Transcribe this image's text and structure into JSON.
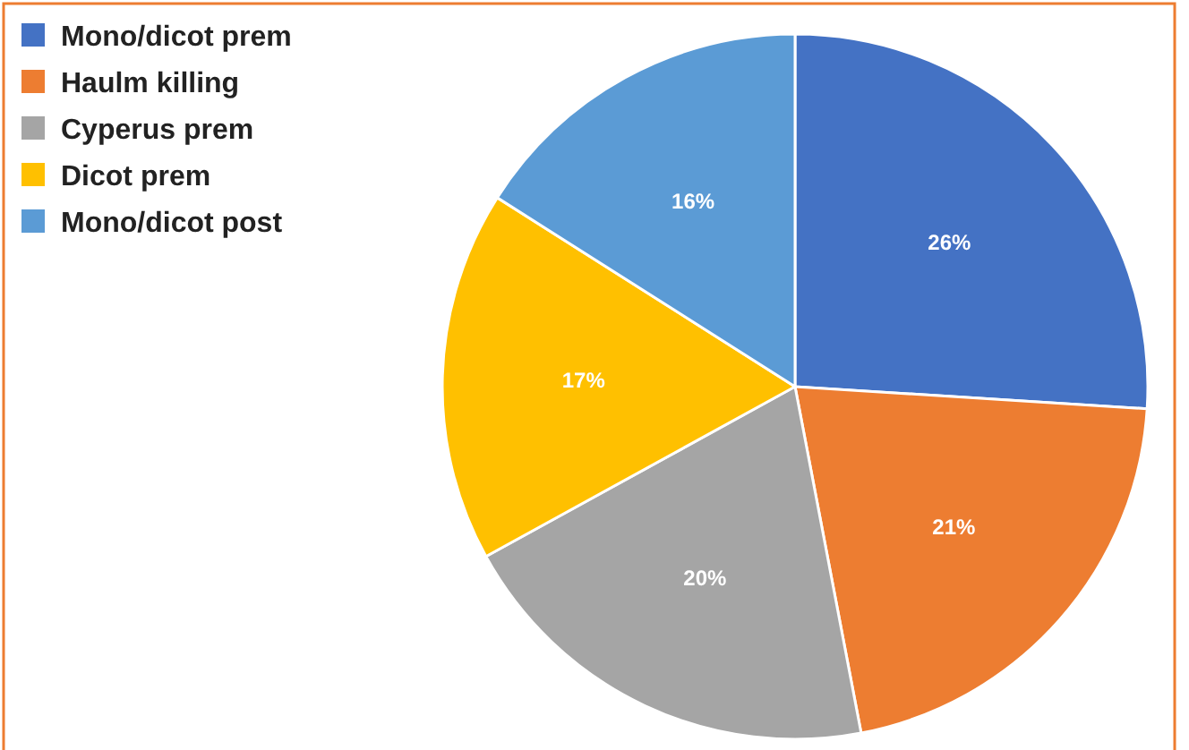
{
  "chart_data": {
    "type": "pie",
    "categories": [
      "Mono/dicot prem",
      "Haulm killing",
      "Cyperus prem",
      "Dicot prem",
      "Mono/dicot post"
    ],
    "values": [
      26,
      21,
      20,
      17,
      16
    ],
    "colors": [
      "#4472c4",
      "#ed7d31",
      "#a5a5a5",
      "#ffc000",
      "#5b9bd5"
    ],
    "value_labels": [
      "26%",
      "21%",
      "20%",
      "17%",
      "16%"
    ],
    "legend": "top left"
  }
}
